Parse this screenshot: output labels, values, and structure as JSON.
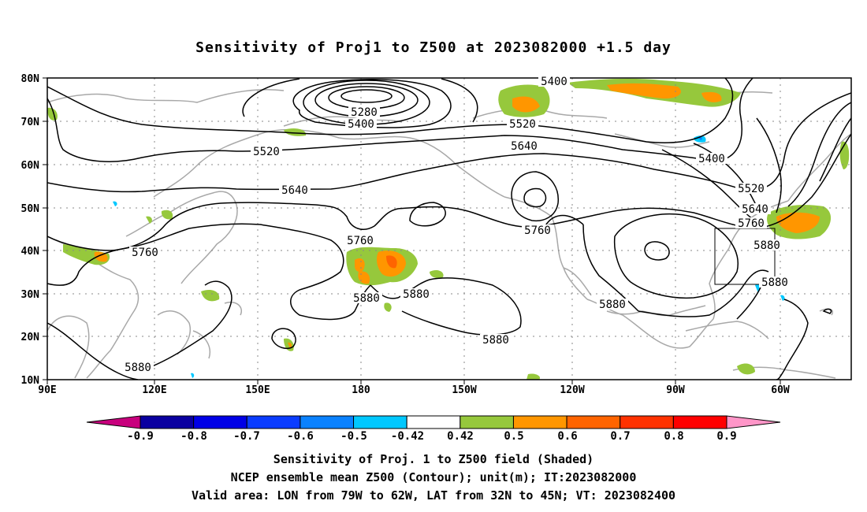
{
  "title": "Sensitivity of Proj1 to Z500 at 2023082000 +1.5 day",
  "map": {
    "lon_labels": [
      "90E",
      "120E",
      "150E",
      "180",
      "150W",
      "120W",
      "90W",
      "60W"
    ],
    "lat_labels": [
      "80N",
      "70N",
      "60N",
      "50N",
      "40N",
      "30N",
      "20N",
      "10N"
    ],
    "contour_labels": [
      {
        "text": "5400",
        "id": "c5400a"
      },
      {
        "text": "5280",
        "id": "c5280"
      },
      {
        "text": "5400",
        "id": "c5400b"
      },
      {
        "text": "5520",
        "id": "c5520a"
      },
      {
        "text": "5520",
        "id": "c5520b"
      },
      {
        "text": "5640",
        "id": "c5640a"
      },
      {
        "text": "5640",
        "id": "c5640b"
      },
      {
        "text": "5400",
        "id": "c5400c"
      },
      {
        "text": "5520",
        "id": "c5520c"
      },
      {
        "text": "5640",
        "id": "c5640c"
      },
      {
        "text": "5760",
        "id": "c5760a"
      },
      {
        "text": "5760",
        "id": "c5760b"
      },
      {
        "text": "5760",
        "id": "c5760c"
      },
      {
        "text": "5760",
        "id": "c5760d"
      },
      {
        "text": "5880",
        "id": "c5880a"
      },
      {
        "text": "5880",
        "id": "c5880b"
      },
      {
        "text": "5880",
        "id": "c5880c"
      },
      {
        "text": "5880",
        "id": "c5880d"
      },
      {
        "text": "5880",
        "id": "c5880e"
      },
      {
        "text": "5880",
        "id": "c5880f"
      },
      {
        "text": "5880",
        "id": "c5880g"
      }
    ]
  },
  "colorbar": {
    "labels": [
      "-0.9",
      "-0.8",
      "-0.7",
      "-0.6",
      "-0.5",
      "-0.42",
      "0.42",
      "0.5",
      "0.6",
      "0.7",
      "0.8",
      "0.9"
    ],
    "colors": [
      "#c8007d",
      "#0a00a0",
      "#0000e6",
      "#0a3cff",
      "#0a82ff",
      "#00c8ff",
      "#ffffff",
      "#96c83c",
      "#ff9600",
      "#ff6400",
      "#ff3200",
      "#ff0000",
      "#ff96c8"
    ]
  },
  "captions": [
    "Sensitivity of Proj. 1 to Z500 field (Shaded)",
    "NCEP ensemble mean Z500 (Contour); unit(m); IT:2023082000",
    "Valid area: LON from 79W to 62W, LAT from 32N to 45N; VT: 2023082400"
  ]
}
